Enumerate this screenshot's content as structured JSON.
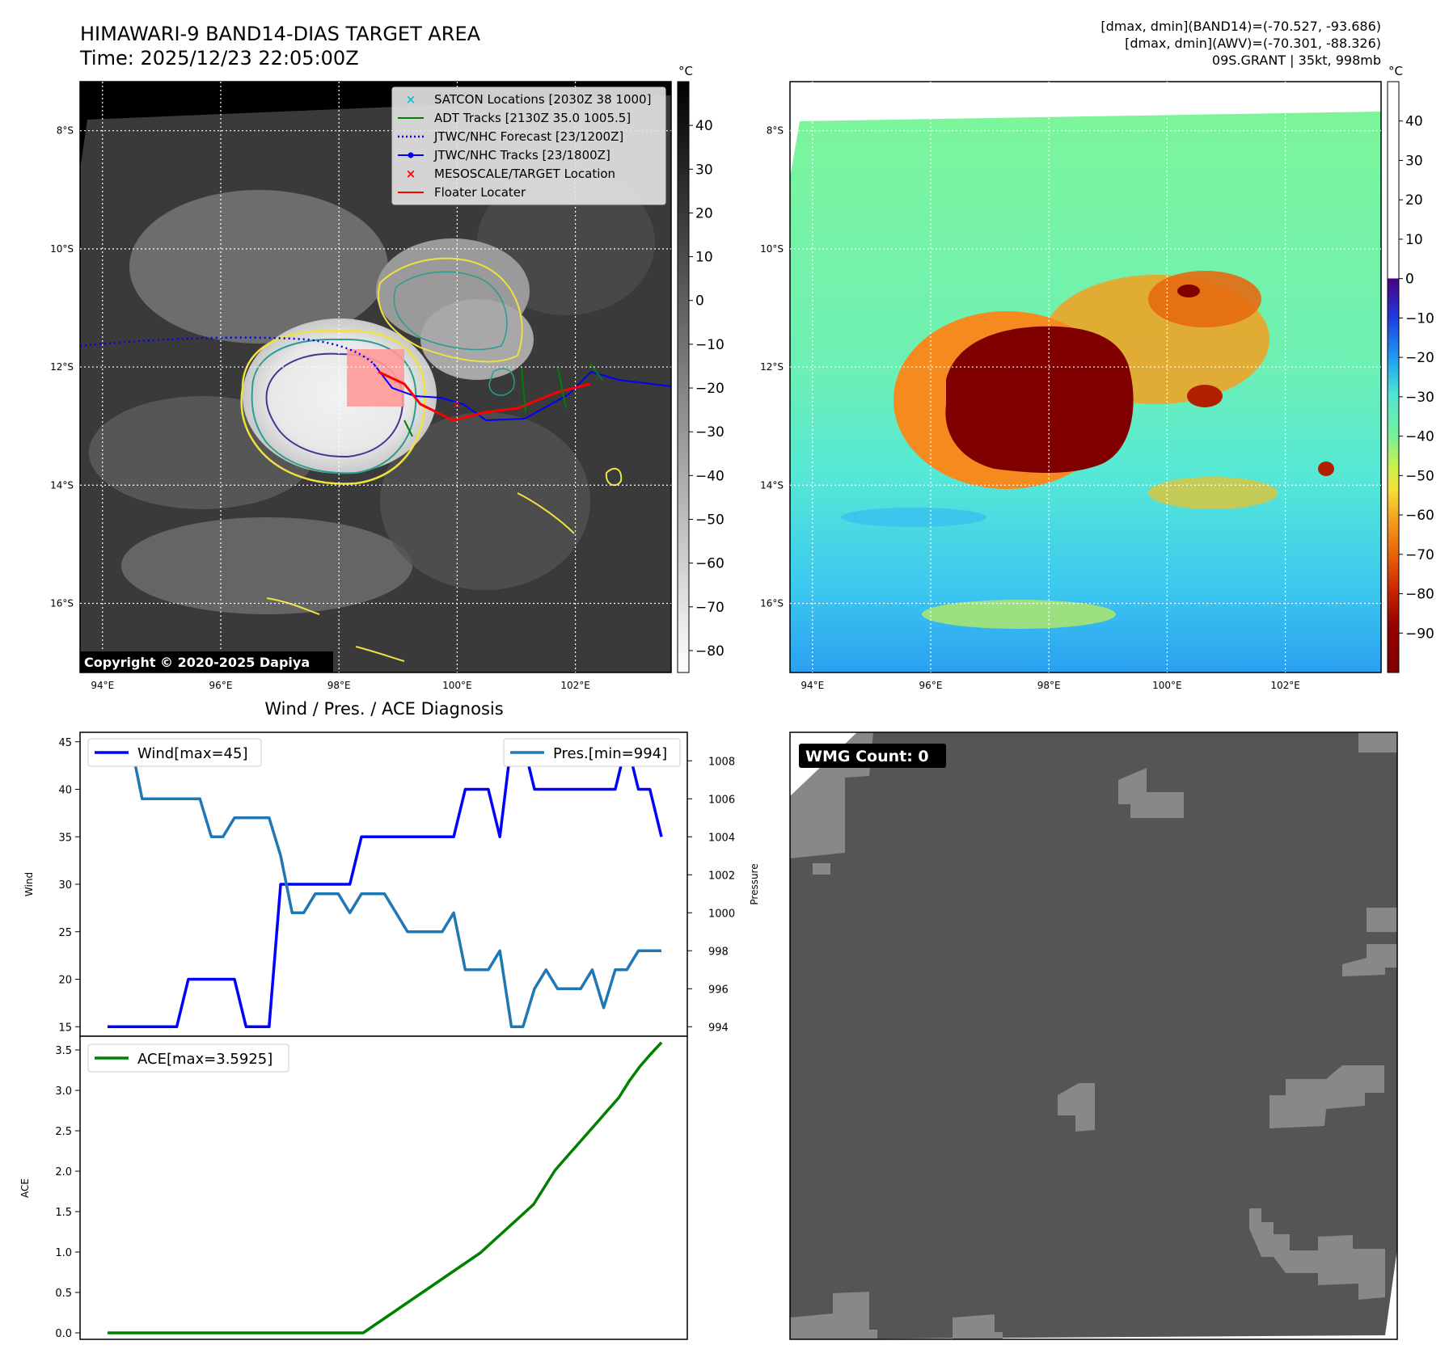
{
  "header": {
    "title_line1": "HIMAWARI-9 BAND14-DIAS TARGET AREA",
    "title_line2": "Time: 2025/12/23 22:05:00Z",
    "info_line1": "[dmax, dmin](BAND14)=(-70.527, -93.686)",
    "info_line2": "[dmax, dmin](AWV)=(-70.301, -88.326)",
    "info_line3": "09S.GRANT | 35kt, 998mb"
  },
  "map_axes": {
    "lat_labels": [
      "8°S",
      "10°S",
      "12°S",
      "14°S",
      "16°S"
    ],
    "lat_values": [
      -8,
      -10,
      -12,
      -14,
      -16
    ],
    "lon_labels": [
      "94°E",
      "96°E",
      "98°E",
      "100°E",
      "102°E"
    ],
    "lon_values": [
      94,
      96,
      98,
      100,
      102
    ],
    "lat_range": [
      -17.17,
      -7.17
    ],
    "lon_range": [
      93.62,
      103.62
    ]
  },
  "ir_panel": {
    "colorbar_unit": "°C",
    "colorbar_ticks": [
      "40",
      "30",
      "20",
      "10",
      "0",
      "−10",
      "−20",
      "−30",
      "−40",
      "−50",
      "−60",
      "−70",
      "−80"
    ],
    "colorbar_values": [
      40,
      30,
      20,
      10,
      0,
      -10,
      -20,
      -30,
      -40,
      -50,
      -60,
      -70,
      -80
    ],
    "colorbar_range": [
      -85,
      50
    ],
    "copyright": "Copyright © 2020-2025 Dapiya",
    "legend": [
      {
        "label": "SATCON Locations [2030Z 38 1000]",
        "color": "#17becf",
        "marker": "x"
      },
      {
        "label": "ADT Tracks [2130Z 35.0 1005.5]",
        "color": "#008000",
        "marker": "line"
      },
      {
        "label": "JTWC/NHC Forecast [23/1200Z]",
        "color": "#0000ff",
        "marker": "dotted"
      },
      {
        "label": "JTWC/NHC Tracks [23/1800Z]",
        "color": "#0000ff",
        "marker": "line-dot"
      },
      {
        "label": "MESOSCALE/TARGET Location",
        "color": "#ff0000",
        "marker": "x"
      },
      {
        "label": "Floater Locater",
        "color": "#ff0000",
        "marker": "line"
      }
    ]
  },
  "awv_panel": {
    "colorbar_unit": "°C",
    "colorbar_ticks": [
      "40",
      "30",
      "20",
      "10",
      "0",
      "−10",
      "−20",
      "−30",
      "−40",
      "−50",
      "−60",
      "−70",
      "−80",
      "−90"
    ],
    "colorbar_values": [
      40,
      30,
      20,
      10,
      0,
      -10,
      -20,
      -30,
      -40,
      -50,
      -60,
      -70,
      -80,
      -90
    ],
    "colorbar_range": [
      -100,
      50
    ]
  },
  "wmg_panel": {
    "label": "WMG Count: 0"
  },
  "chart_data": [
    {
      "type": "line",
      "title": "Wind / Pres. / ACE Diagnosis",
      "ylabel": "Wind",
      "y2label": "Pressure",
      "ylim": [
        14,
        46
      ],
      "y2lim": [
        993.5,
        1009.5
      ],
      "yticks": [
        15,
        20,
        25,
        30,
        35,
        40,
        45
      ],
      "y2ticks": [
        994,
        996,
        998,
        1000,
        1002,
        1004,
        1006,
        1008
      ],
      "series": [
        {
          "name": "Wind[max=45]",
          "axis": "left",
          "color": "#0000ff",
          "values": [
            15,
            15,
            15,
            15,
            15,
            15,
            15,
            20,
            20,
            20,
            20,
            20,
            15,
            15,
            15,
            30,
            30,
            30,
            30,
            30,
            30,
            30,
            35,
            35,
            35,
            35,
            35,
            35,
            35,
            35,
            35,
            40,
            40,
            40,
            35,
            45,
            45,
            40,
            40,
            40,
            40,
            40,
            40,
            40,
            40,
            45,
            40,
            40,
            35
          ]
        },
        {
          "name": "Pres.[min=994]",
          "axis": "right",
          "color": "#1f77b4",
          "values": [
            1009,
            1009,
            1009,
            1006,
            1006,
            1006,
            1006,
            1006,
            1006,
            1004,
            1004,
            1005,
            1005,
            1005,
            1005,
            1003,
            1000,
            1000,
            1001,
            1001,
            1001,
            1000,
            1001,
            1001,
            1001,
            1000,
            999,
            999,
            999,
            999,
            1000,
            997,
            997,
            997,
            998,
            994,
            994,
            996,
            997,
            996,
            996,
            996,
            997,
            995,
            997,
            997,
            998,
            998,
            998
          ]
        }
      ]
    },
    {
      "type": "line",
      "ylabel": "ACE",
      "ylim": [
        -0.08,
        3.67
      ],
      "yticks": [
        "0.0",
        "0.5",
        "1.0",
        "1.5",
        "2.0",
        "2.5",
        "3.0",
        "3.5"
      ],
      "series": [
        {
          "name": "ACE[max=3.5925]",
          "color": "#008000",
          "values": [
            0,
            0,
            0,
            0,
            0,
            0,
            0,
            0,
            0,
            0,
            0,
            0,
            0,
            0,
            0,
            0,
            0,
            0,
            0,
            0,
            0,
            0,
            0,
            0,
            0,
            0.09,
            0.18,
            0.27,
            0.36,
            0.45,
            0.54,
            0.63,
            0.72,
            0.81,
            0.9,
            0.99,
            1.11,
            1.23,
            1.35,
            1.47,
            1.59,
            1.8,
            2.01,
            2.16,
            2.31,
            2.46,
            2.61,
            2.76,
            2.91,
            3.12,
            3.3,
            3.45,
            3.5925
          ]
        }
      ]
    }
  ]
}
